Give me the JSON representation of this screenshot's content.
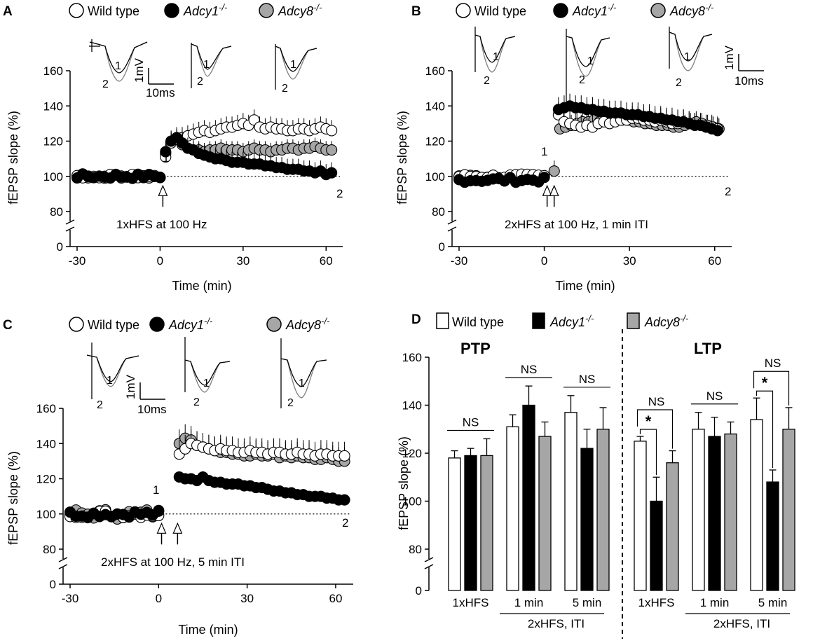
{
  "colors": {
    "wild_type": "#ffffff",
    "adcy1": "#000000",
    "adcy8": "#a6a6a6",
    "stroke": "#000000",
    "trace_gray": "#7f7f7f"
  },
  "legend": {
    "wild_type": "Wild type",
    "adcy1": "Adcy1",
    "adcy1_sup": "-/-",
    "adcy8": "Adcy8",
    "adcy8_sup": "-/-"
  },
  "scale_bar": {
    "vertical": "1mV",
    "horizontal": "10ms"
  },
  "chart_data": [
    {
      "id": "A",
      "type": "scatter",
      "panel_label": "A",
      "xlabel": "Time (min)",
      "ylabel": "fEPSP slope (%)",
      "xlim": [
        -30,
        65
      ],
      "xticks": [
        -30,
        0,
        30,
        60
      ],
      "ylim_main": [
        80,
        160
      ],
      "yticks": [
        0,
        80,
        100,
        120,
        140,
        160
      ],
      "baseline": 100,
      "protocol": "1xHFS at 100 Hz",
      "marker_1": "1",
      "marker_2": "2",
      "trace_labels": [
        "1",
        "2"
      ],
      "stim_times": [
        1
      ],
      "series": [
        {
          "name": "Wild type",
          "key": "wild_type",
          "t0": -30,
          "dt": 2,
          "nbase": 16,
          "base_mean": 100,
          "base_jitter": 1.2,
          "post_t0": 2,
          "post_dt": 2,
          "npost": 31,
          "post": [
            111,
            119,
            121,
            122,
            123,
            124,
            125,
            126,
            125,
            126,
            127,
            128,
            128,
            129,
            130,
            129,
            132,
            128,
            127,
            128,
            127,
            127,
            126,
            126,
            127,
            127,
            126,
            127,
            128,
            127,
            126
          ],
          "err_base": 2,
          "err_post": 6
        },
        {
          "name": "Adcy1-/-",
          "key": "adcy1",
          "t0": -30,
          "dt": 2,
          "nbase": 16,
          "base_mean": 100,
          "base_jitter": 1.4,
          "post_t0": 2,
          "post_dt": 2,
          "npost": 31,
          "post": [
            114,
            120,
            122,
            119,
            116,
            115,
            113,
            112,
            111,
            110,
            110,
            109,
            108,
            108,
            108,
            107,
            107,
            107,
            106,
            106,
            105,
            105,
            104,
            104,
            104,
            103,
            103,
            102,
            103,
            101,
            102
          ],
          "err_base": 2,
          "err_post": 6
        },
        {
          "name": "Adcy8-/-",
          "key": "adcy8",
          "t0": -30,
          "dt": 2,
          "nbase": 16,
          "base_mean": 100,
          "base_jitter": 1.1,
          "post_t0": 2,
          "post_dt": 2,
          "npost": 31,
          "post": [
            113,
            120,
            121,
            118,
            116,
            115,
            115,
            114,
            115,
            115,
            116,
            115,
            115,
            115,
            114,
            115,
            116,
            115,
            115,
            114,
            115,
            115,
            116,
            116,
            115,
            116,
            116,
            117,
            116,
            115,
            115
          ],
          "err_base": 2,
          "err_post": 5
        }
      ]
    },
    {
      "id": "B",
      "type": "scatter",
      "panel_label": "B",
      "xlabel": "Time (min)",
      "ylabel": "fEPSP slope (%)",
      "xlim": [
        -30,
        65
      ],
      "xticks": [
        -30,
        0,
        30,
        60
      ],
      "ylim_main": [
        80,
        160
      ],
      "yticks": [
        0,
        80,
        100,
        120,
        140,
        160
      ],
      "baseline": 100,
      "protocol": "2xHFS at 100 Hz, 1 min ITI",
      "marker_1": "1",
      "marker_2": "2",
      "trace_labels": [
        "1",
        "2"
      ],
      "stim_times": [
        1,
        2
      ],
      "series": [
        {
          "name": "Wild type",
          "key": "wild_type",
          "t0": -30,
          "dt": 2,
          "nbase": 16,
          "base_mean": 100,
          "base_jitter": 1.3,
          "post_t0": 5,
          "post_dt": 2,
          "npost": 29,
          "post": [
            135,
            131,
            130,
            129,
            128,
            129,
            128,
            130,
            131,
            130,
            131,
            132,
            132,
            133,
            133,
            132,
            132,
            131,
            132,
            131,
            130,
            130,
            131,
            130,
            129,
            129,
            128,
            128,
            127
          ],
          "err_base": 2,
          "err_post": 7
        },
        {
          "name": "Adcy1-/-",
          "key": "adcy1",
          "t0": -30,
          "dt": 2,
          "nbase": 16,
          "base_mean": 98,
          "base_jitter": 1.4,
          "post_t0": 5,
          "post_dt": 2,
          "npost": 29,
          "post": [
            138,
            139,
            140,
            139,
            139,
            138,
            138,
            137,
            137,
            136,
            136,
            136,
            135,
            135,
            135,
            134,
            134,
            133,
            133,
            132,
            132,
            131,
            131,
            130,
            129,
            129,
            128,
            127,
            126
          ],
          "err_base": 2,
          "err_post": 7
        },
        {
          "name": "Adcy8-/-",
          "key": "adcy8",
          "t0": -30,
          "dt": 2,
          "nbase": 16,
          "base_mean": 100,
          "base_jitter": 1.0,
          "post_t0": 3.5,
          "post_dt": 2,
          "npost": 30,
          "post": [
            103,
            127,
            128,
            129,
            130,
            131,
            131,
            132,
            131,
            132,
            133,
            132,
            132,
            132,
            131,
            131,
            130,
            130,
            129,
            129,
            129,
            128,
            128,
            129,
            130,
            131,
            130,
            129,
            128,
            127
          ],
          "err_base": 2,
          "err_post": 6
        }
      ]
    },
    {
      "id": "C",
      "type": "scatter",
      "panel_label": "C",
      "xlabel": "Time (min)",
      "ylabel": "fEPSP slope (%)",
      "xlim": [
        -30,
        65
      ],
      "xticks": [
        -30,
        0,
        30,
        60
      ],
      "ylim_main": [
        80,
        160
      ],
      "yticks": [
        0,
        80,
        100,
        120,
        140,
        160
      ],
      "baseline": 100,
      "protocol": "2xHFS at 100 Hz, 5 min ITI",
      "marker_1": "1",
      "marker_2": "2",
      "trace_labels": [
        "1",
        "2"
      ],
      "stim_times": [
        1,
        5
      ],
      "series": [
        {
          "name": "Wild type",
          "key": "wild_type",
          "t0": -30,
          "dt": 2,
          "nbase": 16,
          "base_mean": 100,
          "base_jitter": 2.2,
          "post_t0": 7,
          "post_dt": 2,
          "npost": 29,
          "post": [
            134,
            137,
            140,
            139,
            138,
            137,
            136,
            137,
            136,
            136,
            135,
            135,
            136,
            135,
            135,
            134,
            135,
            135,
            134,
            134,
            135,
            134,
            134,
            133,
            134,
            134,
            133,
            133,
            133
          ],
          "err_base": 3,
          "err_post": 8
        },
        {
          "name": "Adcy1-/-",
          "key": "adcy1",
          "t0": -30,
          "dt": 2,
          "nbase": 16,
          "base_mean": 100,
          "base_jitter": 1.8,
          "post_t0": 7,
          "post_dt": 2,
          "npost": 29,
          "post": [
            121,
            120,
            120,
            119,
            121,
            119,
            118,
            118,
            117,
            117,
            117,
            116,
            116,
            115,
            115,
            114,
            113,
            113,
            112,
            112,
            111,
            111,
            110,
            110,
            110,
            109,
            109,
            108,
            108
          ],
          "err_base": 2,
          "err_post": 2
        },
        {
          "name": "Adcy8-/-",
          "key": "adcy8",
          "t0": -30,
          "dt": 2,
          "nbase": 16,
          "base_mean": 100,
          "base_jitter": 3.0,
          "post_t0": 7,
          "post_dt": 2,
          "npost": 29,
          "post": [
            140,
            143,
            142,
            139,
            138,
            137,
            136,
            135,
            135,
            134,
            134,
            133,
            133,
            134,
            133,
            133,
            134,
            132,
            133,
            132,
            133,
            132,
            132,
            131,
            131,
            132,
            131,
            130,
            130
          ],
          "err_base": 3,
          "err_post": 8
        }
      ]
    },
    {
      "id": "D",
      "type": "bar",
      "panel_label": "D",
      "ylabel": "fEPSP slope (%)",
      "yticks": [
        0,
        80,
        100,
        120,
        140,
        160
      ],
      "ylim_main": [
        80,
        160
      ],
      "group_titles": [
        "PTP",
        "LTP"
      ],
      "categories": [
        "1xHFS",
        "1 min",
        "5 min",
        "1xHFS",
        "1 min",
        "5 min"
      ],
      "subgroup_label": "2xHFS, ITI",
      "series": [
        {
          "name": "Wild type",
          "key": "wild_type",
          "values": [
            118,
            131,
            137,
            125,
            130,
            134
          ],
          "errors": [
            3,
            5,
            7,
            2,
            7,
            9
          ]
        },
        {
          "name": "Adcy1-/-",
          "key": "adcy1",
          "values": [
            119,
            140,
            122,
            100,
            127,
            108
          ],
          "errors": [
            3,
            8,
            8,
            10,
            8,
            5
          ]
        },
        {
          "name": "Adcy8-/-",
          "key": "adcy8",
          "values": [
            119,
            127,
            130,
            116,
            128,
            130
          ],
          "errors": [
            7,
            6,
            9,
            5,
            5,
            9
          ]
        }
      ],
      "significance": {
        "ns": "NS",
        "star": "*"
      }
    }
  ]
}
